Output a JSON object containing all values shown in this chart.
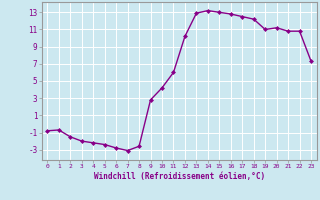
{
  "x": [
    0,
    1,
    2,
    3,
    4,
    5,
    6,
    7,
    8,
    9,
    10,
    11,
    12,
    13,
    14,
    15,
    16,
    17,
    18,
    19,
    20,
    21,
    22,
    23
  ],
  "y": [
    -0.8,
    -0.7,
    -1.5,
    -2.0,
    -2.2,
    -2.4,
    -2.8,
    -3.1,
    -2.6,
    2.8,
    4.2,
    6.0,
    10.2,
    12.9,
    13.2,
    13.0,
    12.8,
    12.5,
    12.2,
    11.0,
    11.2,
    10.8,
    10.8,
    7.3
  ],
  "line_color": "#880088",
  "marker": "D",
  "markersize": 2,
  "linewidth": 1.0,
  "xlabel": "Windchill (Refroidissement éolien,°C)",
  "xlabel_color": "#880088",
  "ylabel_ticks": [
    -3,
    -1,
    1,
    3,
    5,
    7,
    9,
    11,
    13
  ],
  "xticks": [
    0,
    1,
    2,
    3,
    4,
    5,
    6,
    7,
    8,
    9,
    10,
    11,
    12,
    13,
    14,
    15,
    16,
    17,
    18,
    19,
    20,
    21,
    22,
    23
  ],
  "xlim": [
    -0.5,
    23.5
  ],
  "ylim": [
    -4.2,
    14.2
  ],
  "bg_color": "#cce8f0",
  "grid_color": "#ffffff",
  "tick_color": "#880088",
  "spine_color": "#999999"
}
